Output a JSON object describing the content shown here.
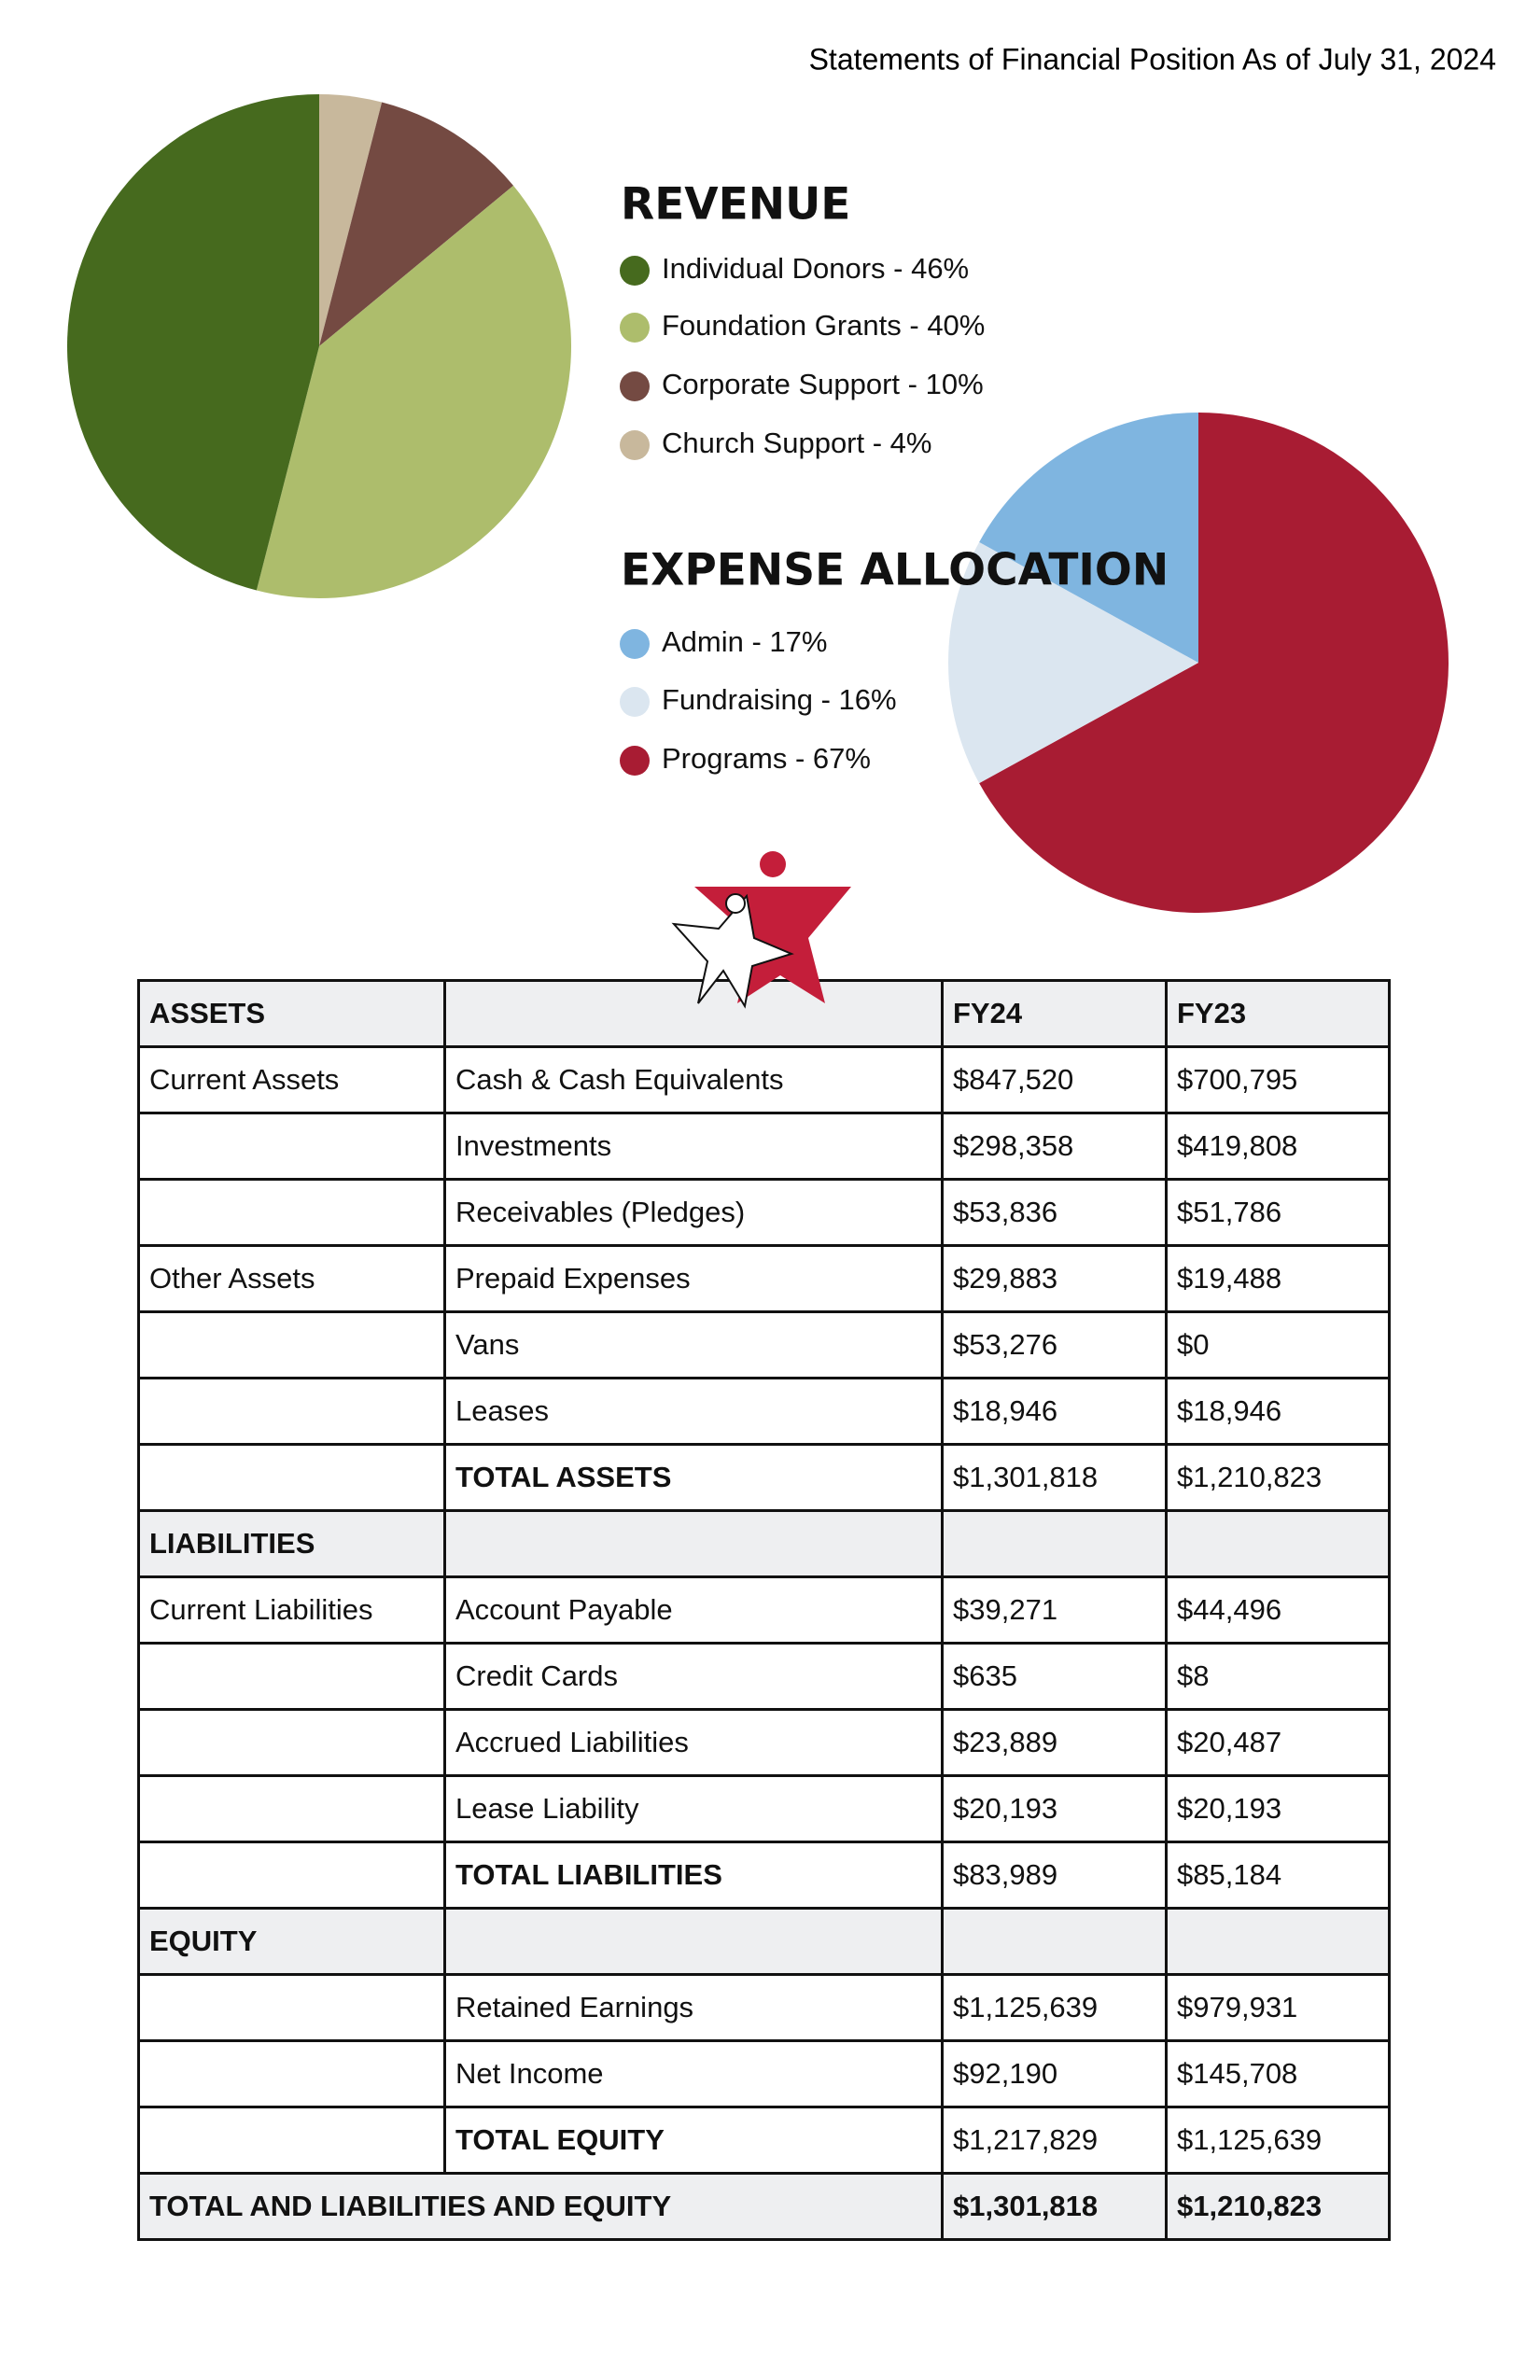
{
  "header": {
    "title": "Statements of Financial Position As of July 31, 2024"
  },
  "chart_data": [
    {
      "type": "pie",
      "title": "REVENUE",
      "categories": [
        "Individual Donors - 46%",
        "Foundation Grants - 40%",
        "Corporate Support - 10%",
        "Church Support - 4%"
      ],
      "values": [
        46,
        40,
        10,
        4
      ],
      "colors": [
        "#466a1e",
        "#adbd6c",
        "#744a42",
        "#c8b89c"
      ]
    },
    {
      "type": "pie",
      "title": "EXPENSE ALLOCATION",
      "categories": [
        "Admin - 17%",
        "Fundraising - 16%",
        "Programs - 67%"
      ],
      "values": [
        17,
        16,
        67
      ],
      "colors": [
        "#7fb5e0",
        "#dbe6f0",
        "#a81c33"
      ]
    }
  ],
  "table": {
    "rows": [
      [
        "ASSETS",
        null,
        "FY24",
        "FY23"
      ],
      [
        "Current Assets",
        "Cash & Cash Equivalents",
        "$847,520",
        "$700,795"
      ],
      [
        null,
        "Investments",
        "$298,358",
        "$419,808"
      ],
      [
        null,
        "Receivables (Pledges)",
        "$53,836",
        "$51,786"
      ],
      [
        "Other Assets",
        "Prepaid Expenses",
        "$29,883",
        "$19,488"
      ],
      [
        null,
        "Vans",
        "$53,276",
        "$0"
      ],
      [
        null,
        "Leases",
        "$18,946",
        "$18,946"
      ],
      [
        null,
        "TOTAL ASSETS",
        "$1,301,818",
        "$1,210,823"
      ],
      [
        "LIABILITIES",
        null,
        null,
        null
      ],
      [
        "Current Liabilities",
        "Account Payable",
        "$39,271",
        "$44,496"
      ],
      [
        null,
        "Credit Cards",
        "$635",
        "$8"
      ],
      [
        null,
        "Accrued Liabilities",
        "$23,889",
        "$20,487"
      ],
      [
        null,
        "Lease Liability",
        "$20,193",
        "$20,193"
      ],
      [
        null,
        "TOTAL LIABILITIES",
        "$83,989",
        "$85,184"
      ],
      [
        "EQUITY",
        null,
        null,
        null
      ],
      [
        null,
        "Retained Earnings",
        "$1,125,639",
        "$979,931"
      ],
      [
        null,
        "Net Income",
        "$92,190",
        "$145,708"
      ],
      [
        null,
        "TOTAL EQUITY",
        "$1,217,829",
        "$1,125,639"
      ],
      [
        "TOTAL AND LIABILITIES AND EQUITY",
        "$1,301,818",
        "$1,210,823"
      ]
    ]
  }
}
